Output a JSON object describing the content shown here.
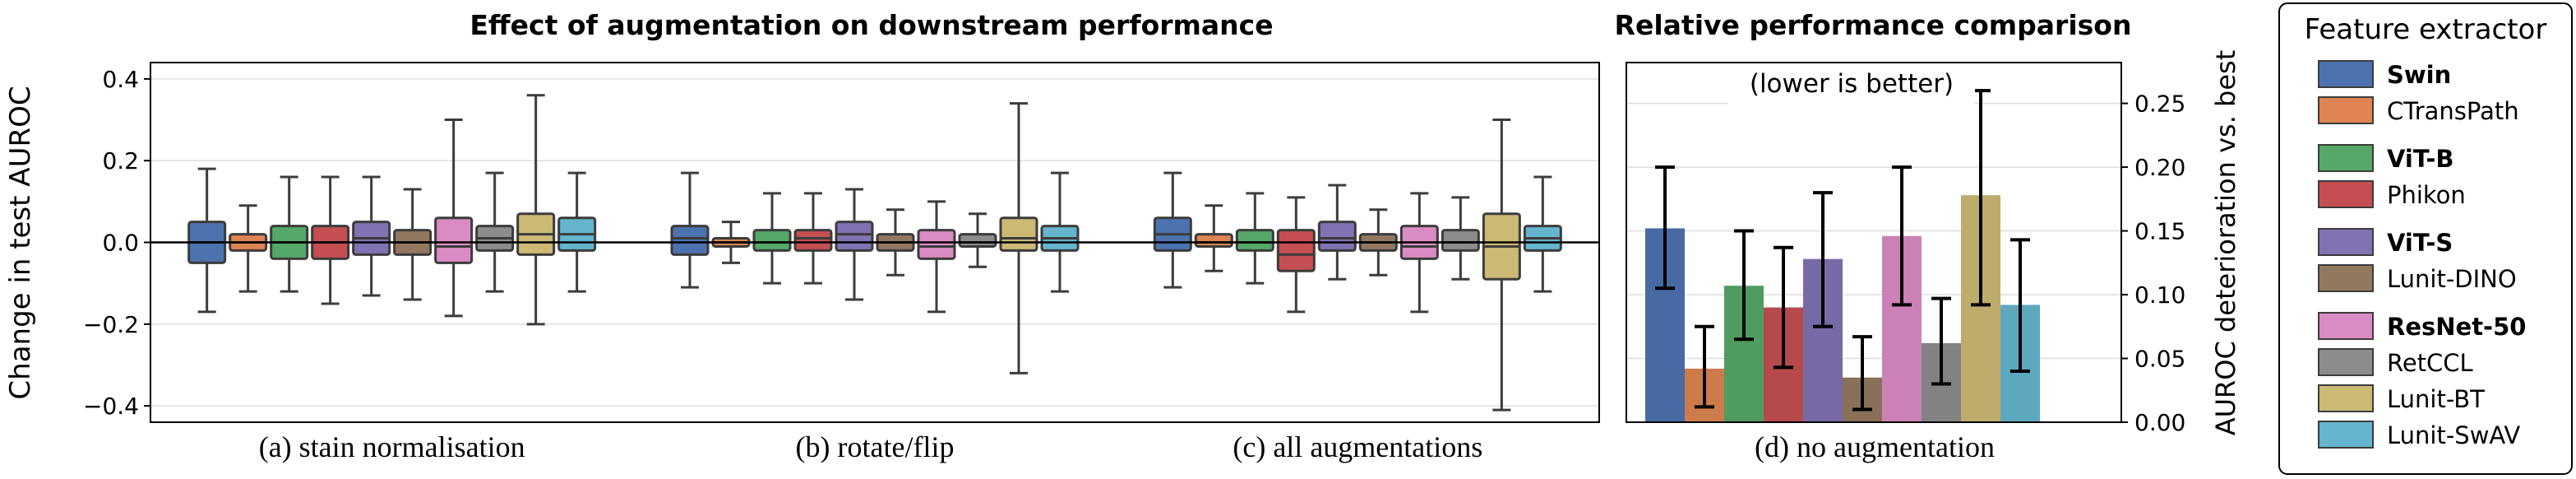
{
  "colors": {
    "Swin": "#4c72b0",
    "CTransPath": "#dd8452",
    "ViT-B": "#55a868",
    "Phikon": "#c44e52",
    "ViT-S": "#8172b3",
    "Lunit-DINO": "#937860",
    "ResNet-50": "#da8bc3",
    "RetCCL": "#8c8c8c",
    "Lunit-BT": "#ccb974",
    "Lunit-SwAV": "#64b5cd"
  },
  "chart_data": [
    {
      "type": "box",
      "title": "Effect of augmentation on downstream performance",
      "ylabel": "Change in test AUROC",
      "ylim": [
        -0.44,
        0.44
      ],
      "yticks": [
        -0.4,
        -0.2,
        0.0,
        0.2,
        0.4
      ],
      "ytick_labels": [
        "−0.4",
        "−0.2",
        "0.0",
        "0.2",
        "0.4"
      ],
      "grid": true,
      "reference_line": 0.0,
      "groups": [
        {
          "label": "(a) stain normalisation",
          "series": [
            {
              "name": "Swin",
              "whislo": -0.17,
              "q1": -0.05,
              "med": 0.0,
              "q3": 0.05,
              "whishi": 0.18
            },
            {
              "name": "CTransPath",
              "whislo": -0.12,
              "q1": -0.02,
              "med": 0.0,
              "q3": 0.02,
              "whishi": 0.09
            },
            {
              "name": "ViT-B",
              "whislo": -0.12,
              "q1": -0.04,
              "med": 0.0,
              "q3": 0.04,
              "whishi": 0.16
            },
            {
              "name": "Phikon",
              "whislo": -0.15,
              "q1": -0.04,
              "med": 0.0,
              "q3": 0.04,
              "whishi": 0.16
            },
            {
              "name": "ViT-S",
              "whislo": -0.13,
              "q1": -0.03,
              "med": 0.01,
              "q3": 0.05,
              "whishi": 0.16
            },
            {
              "name": "Lunit-DINO",
              "whislo": -0.14,
              "q1": -0.03,
              "med": 0.0,
              "q3": 0.03,
              "whishi": 0.13
            },
            {
              "name": "ResNet-50",
              "whislo": -0.18,
              "q1": -0.05,
              "med": -0.01,
              "q3": 0.06,
              "whishi": 0.3
            },
            {
              "name": "RetCCL",
              "whislo": -0.12,
              "q1": -0.02,
              "med": 0.01,
              "q3": 0.04,
              "whishi": 0.17
            },
            {
              "name": "Lunit-BT",
              "whislo": -0.2,
              "q1": -0.03,
              "med": 0.02,
              "q3": 0.07,
              "whishi": 0.36
            },
            {
              "name": "Lunit-SwAV",
              "whislo": -0.12,
              "q1": -0.02,
              "med": 0.02,
              "q3": 0.06,
              "whishi": 0.17
            }
          ]
        },
        {
          "label": "(b) rotate/flip",
          "series": [
            {
              "name": "Swin",
              "whislo": -0.11,
              "q1": -0.03,
              "med": 0.01,
              "q3": 0.04,
              "whishi": 0.17
            },
            {
              "name": "CTransPath",
              "whislo": -0.05,
              "q1": -0.01,
              "med": 0.0,
              "q3": 0.01,
              "whishi": 0.05
            },
            {
              "name": "ViT-B",
              "whislo": -0.1,
              "q1": -0.02,
              "med": 0.0,
              "q3": 0.03,
              "whishi": 0.12
            },
            {
              "name": "Phikon",
              "whislo": -0.1,
              "q1": -0.02,
              "med": 0.01,
              "q3": 0.03,
              "whishi": 0.12
            },
            {
              "name": "ViT-S",
              "whislo": -0.14,
              "q1": -0.02,
              "med": 0.02,
              "q3": 0.05,
              "whishi": 0.13
            },
            {
              "name": "Lunit-DINO",
              "whislo": -0.08,
              "q1": -0.02,
              "med": 0.0,
              "q3": 0.02,
              "whishi": 0.08
            },
            {
              "name": "ResNet-50",
              "whislo": -0.17,
              "q1": -0.04,
              "med": -0.01,
              "q3": 0.03,
              "whishi": 0.1
            },
            {
              "name": "RetCCL",
              "whislo": -0.06,
              "q1": -0.01,
              "med": 0.0,
              "q3": 0.02,
              "whishi": 0.07
            },
            {
              "name": "Lunit-BT",
              "whislo": -0.32,
              "q1": -0.02,
              "med": 0.01,
              "q3": 0.06,
              "whishi": 0.34
            },
            {
              "name": "Lunit-SwAV",
              "whislo": -0.12,
              "q1": -0.02,
              "med": 0.01,
              "q3": 0.04,
              "whishi": 0.17
            }
          ]
        },
        {
          "label": "(c) all augmentations",
          "series": [
            {
              "name": "Swin",
              "whislo": -0.11,
              "q1": -0.02,
              "med": 0.02,
              "q3": 0.06,
              "whishi": 0.17
            },
            {
              "name": "CTransPath",
              "whislo": -0.07,
              "q1": -0.01,
              "med": 0.0,
              "q3": 0.02,
              "whishi": 0.09
            },
            {
              "name": "ViT-B",
              "whislo": -0.1,
              "q1": -0.02,
              "med": 0.0,
              "q3": 0.03,
              "whishi": 0.12
            },
            {
              "name": "Phikon",
              "whislo": -0.17,
              "q1": -0.07,
              "med": -0.03,
              "q3": 0.03,
              "whishi": 0.11
            },
            {
              "name": "ViT-S",
              "whislo": -0.09,
              "q1": -0.02,
              "med": 0.01,
              "q3": 0.05,
              "whishi": 0.14
            },
            {
              "name": "Lunit-DINO",
              "whislo": -0.08,
              "q1": -0.02,
              "med": 0.0,
              "q3": 0.02,
              "whishi": 0.08
            },
            {
              "name": "ResNet-50",
              "whislo": -0.17,
              "q1": -0.04,
              "med": -0.01,
              "q3": 0.04,
              "whishi": 0.12
            },
            {
              "name": "RetCCL",
              "whislo": -0.09,
              "q1": -0.02,
              "med": 0.0,
              "q3": 0.03,
              "whishi": 0.11
            },
            {
              "name": "Lunit-BT",
              "whislo": -0.41,
              "q1": -0.09,
              "med": -0.01,
              "q3": 0.07,
              "whishi": 0.3
            },
            {
              "name": "Lunit-SwAV",
              "whislo": -0.12,
              "q1": -0.02,
              "med": 0.01,
              "q3": 0.04,
              "whishi": 0.16
            }
          ]
        }
      ]
    },
    {
      "type": "bar",
      "title": "Relative performance comparison",
      "ylabel": "AUROC deterioration vs. best",
      "xlabel": "(d) no augmentation",
      "annotation": "(lower is better)",
      "ylim": [
        0,
        0.282
      ],
      "yticks": [
        0.0,
        0.05,
        0.1,
        0.15,
        0.2,
        0.25
      ],
      "ytick_labels": [
        "0.00",
        "0.05",
        "0.10",
        "0.15",
        "0.20",
        "0.25"
      ],
      "grid": true,
      "series": [
        {
          "name": "Swin",
          "value": 0.152,
          "err_lo": 0.105,
          "err_hi": 0.2
        },
        {
          "name": "CTransPath",
          "value": 0.042,
          "err_lo": 0.012,
          "err_hi": 0.075
        },
        {
          "name": "ViT-B",
          "value": 0.107,
          "err_lo": 0.065,
          "err_hi": 0.15
        },
        {
          "name": "Phikon",
          "value": 0.09,
          "err_lo": 0.043,
          "err_hi": 0.137
        },
        {
          "name": "ViT-S",
          "value": 0.128,
          "err_lo": 0.075,
          "err_hi": 0.18
        },
        {
          "name": "Lunit-DINO",
          "value": 0.035,
          "err_lo": 0.01,
          "err_hi": 0.067
        },
        {
          "name": "ResNet-50",
          "value": 0.146,
          "err_lo": 0.092,
          "err_hi": 0.2
        },
        {
          "name": "RetCCL",
          "value": 0.062,
          "err_lo": 0.03,
          "err_hi": 0.097
        },
        {
          "name": "Lunit-BT",
          "value": 0.178,
          "err_lo": 0.092,
          "err_hi": 0.26
        },
        {
          "name": "Lunit-SwAV",
          "value": 0.092,
          "err_lo": 0.04,
          "err_hi": 0.143
        }
      ]
    }
  ],
  "legend": {
    "title": "Feature extractor",
    "placement": "right",
    "entries": [
      {
        "name": "Swin",
        "bold": true
      },
      {
        "name": "CTransPath",
        "bold": false
      },
      {
        "name": "ViT-B",
        "bold": true
      },
      {
        "name": "Phikon",
        "bold": false
      },
      {
        "name": "ViT-S",
        "bold": true
      },
      {
        "name": "Lunit-DINO",
        "bold": false
      },
      {
        "name": "ResNet-50",
        "bold": true
      },
      {
        "name": "RetCCL",
        "bold": false
      },
      {
        "name": "Lunit-BT",
        "bold": false
      },
      {
        "name": "Lunit-SwAV",
        "bold": false
      }
    ]
  }
}
